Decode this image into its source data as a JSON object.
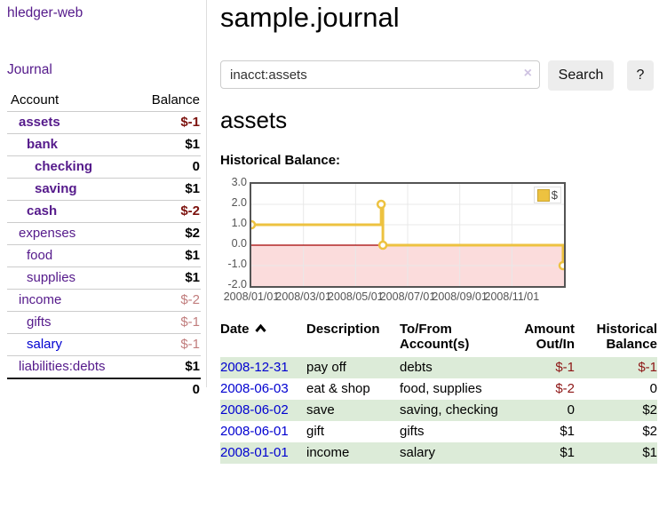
{
  "app": {
    "brand": "hledger-web",
    "nav_journal": "Journal"
  },
  "sidebar": {
    "table_headers": {
      "account": "Account",
      "balance": "Balance"
    },
    "accounts": [
      {
        "name": "assets",
        "indent": 1,
        "bold": true,
        "balance": "$-1",
        "neg": "strong"
      },
      {
        "name": "bank",
        "indent": 2,
        "bold": true,
        "balance": "$1"
      },
      {
        "name": "checking",
        "indent": 3,
        "bold": true,
        "balance": "0"
      },
      {
        "name": "saving",
        "indent": 3,
        "bold": true,
        "balance": "$1"
      },
      {
        "name": "cash",
        "indent": 2,
        "bold": true,
        "balance": "$-2",
        "neg": "strong"
      },
      {
        "name": "expenses",
        "indent": 1,
        "bold": false,
        "balance": "$2"
      },
      {
        "name": "food",
        "indent": 2,
        "bold": false,
        "balance": "$1"
      },
      {
        "name": "supplies",
        "indent": 2,
        "bold": false,
        "balance": "$1"
      },
      {
        "name": "income",
        "indent": 1,
        "bold": false,
        "balance": "$-2",
        "neg": "soft"
      },
      {
        "name": "gifts",
        "indent": 2,
        "bold": false,
        "balance": "$-1",
        "neg": "soft"
      },
      {
        "name": "salary",
        "indent": 2,
        "bold": false,
        "balance": "$-1",
        "neg": "soft",
        "link": "blue"
      },
      {
        "name": "liabilities:debts",
        "indent": 1,
        "bold": false,
        "balance": "$1"
      }
    ],
    "total": "0"
  },
  "header": {
    "title": "sample.journal"
  },
  "search": {
    "value": "inacct:assets",
    "clear_icon": "×",
    "button_label": "Search",
    "help_label": "?"
  },
  "account_page": {
    "heading": "assets",
    "chart_label": "Historical Balance:"
  },
  "chart_data": {
    "type": "line",
    "title": "Historical Balance",
    "step": true,
    "legend": "$",
    "legend_position": "top-right",
    "series": [
      {
        "name": "$",
        "color": "#edc240",
        "points": [
          {
            "date": "2008-01-01",
            "value": 1
          },
          {
            "date": "2008-06-01",
            "value": 2
          },
          {
            "date": "2008-06-03",
            "value": 0
          },
          {
            "date": "2008-12-31",
            "value": -1
          }
        ]
      }
    ],
    "x_ticks": [
      "2008/01/01",
      "2008/03/01",
      "2008/05/01",
      "2008/07/01",
      "2008/09/01",
      "2008/11/01"
    ],
    "y_ticks": [
      3.0,
      2.0,
      1.0,
      0.0,
      -1.0,
      -2.0
    ],
    "ylim": [
      -2,
      3
    ],
    "x_range_days": 366,
    "grid": true,
    "negative_region_color": "#fbdcdc",
    "zero_line_color": "#a40000",
    "grid_color": "#e8e8e8"
  },
  "register": {
    "columns": [
      {
        "label": "Date",
        "sortable": true
      },
      {
        "label": "Description"
      },
      {
        "label": "To/From Account(s)"
      },
      {
        "label": "Amount Out/In",
        "align": "right"
      },
      {
        "label": "Historical Balance",
        "align": "right"
      }
    ],
    "rows": [
      {
        "date": "2008-12-31",
        "description": "pay off",
        "accounts": "debts",
        "amount": "$-1",
        "amount_neg": true,
        "balance": "$-1",
        "balance_neg": true,
        "shaded": true
      },
      {
        "date": "2008-06-03",
        "description": "eat & shop",
        "accounts": "food, supplies",
        "amount": "$-2",
        "amount_neg": true,
        "balance": "0",
        "balance_neg": false,
        "shaded": false
      },
      {
        "date": "2008-06-02",
        "description": "save",
        "accounts": "saving, checking",
        "amount": "0",
        "amount_neg": false,
        "balance": "$2",
        "balance_neg": false,
        "shaded": true
      },
      {
        "date": "2008-06-01",
        "description": "gift",
        "accounts": "gifts",
        "amount": "$1",
        "amount_neg": false,
        "balance": "$2",
        "balance_neg": false,
        "shaded": false
      },
      {
        "date": "2008-01-01",
        "description": "income",
        "accounts": "salary",
        "amount": "$1",
        "amount_neg": false,
        "balance": "$1",
        "balance_neg": false,
        "shaded": true
      }
    ]
  }
}
